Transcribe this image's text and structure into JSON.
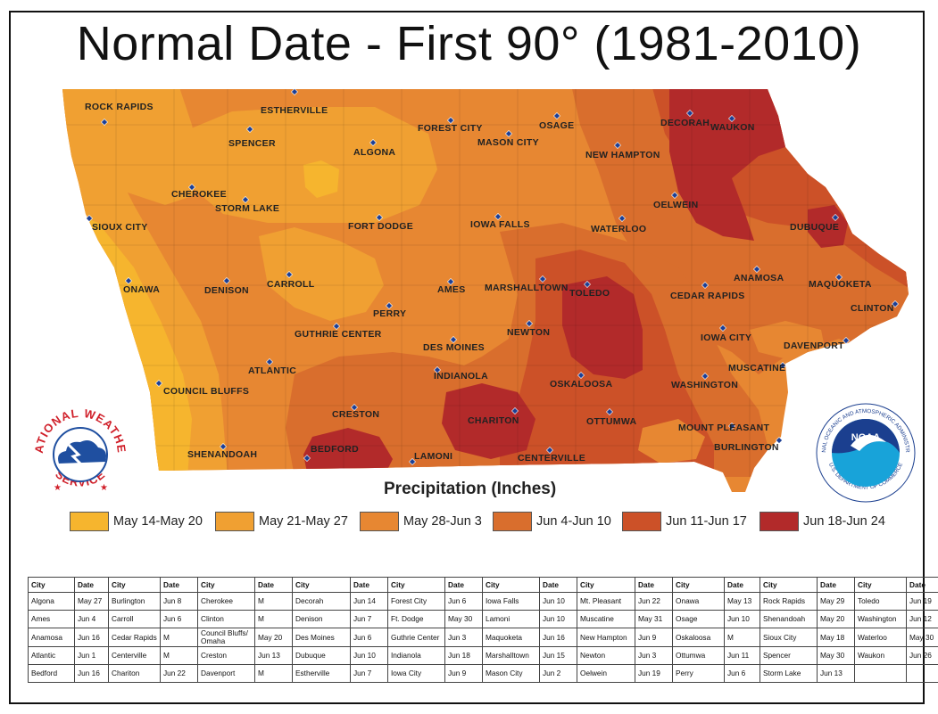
{
  "title": "Normal Date - First 90° (1981-2010)",
  "legend": {
    "title": "Precipitation (Inches)",
    "items": [
      {
        "label": "May 14-May 20",
        "color": "#f6b52e"
      },
      {
        "label": "May 21-May 27",
        "color": "#f0a032"
      },
      {
        "label": "May 28-Jun 3",
        "color": "#e78732"
      },
      {
        "label": "Jun 4-Jun 10",
        "color": "#d96e2d"
      },
      {
        "label": "Jun 11-Jun 17",
        "color": "#cc5128"
      },
      {
        "label": "Jun 18-Jun 24",
        "color": "#b22a2a"
      }
    ]
  },
  "cities": [
    "ROCK RAPIDS",
    "ESTHERVILLE",
    "FOREST CITY",
    "OSAGE",
    "DECORAH",
    "WAUKON",
    "SPENCER",
    "ALGONA",
    "MASON CITY",
    "NEW HAMPTON",
    "CHEROKEE",
    "STORM LAKE",
    "OELWEIN",
    "SIOUX CITY",
    "FORT DODGE",
    "IOWA FALLS",
    "WATERLOO",
    "DUBUQUE",
    "ANAMOSA",
    "ONAWA",
    "DENISON",
    "CARROLL",
    "AMES",
    "MARSHALLTOWN",
    "TOLEDO",
    "MAQUOKETA",
    "CEDAR RAPIDS",
    "PERRY",
    "CLINTON",
    "GUTHRIE CENTER",
    "NEWTON",
    "IOWA CITY",
    "DES MOINES",
    "DAVENPORT",
    "ATLANTIC",
    "INDIANOLA",
    "MUSCATINE",
    "COUNCIL BLUFFS",
    "OSKALOOSA",
    "WASHINGTON",
    "CRESTON",
    "CHARITON",
    "OTTUMWA",
    "MOUNT PLEASANT",
    "BEDFORD",
    "LAMONI",
    "CENTERVILLE",
    "BURLINGTON",
    "SHENANDOAH"
  ],
  "logos": {
    "nws": {
      "top": "NATIONAL WEATHER",
      "bottom": "SERVICE"
    },
    "noaa": {
      "center": "NOAA",
      "ring": "NATIONAL OCEANIC AND ATMOSPHERIC ADMINISTRATION",
      "ring_bottom": "U.S. DEPARTMENT OF COMMERCE"
    }
  },
  "table": {
    "headers": [
      "City",
      "Date",
      "City",
      "Date",
      "City",
      "Date",
      "City",
      "Date",
      "City",
      "Date",
      "City",
      "Date",
      "City",
      "Date",
      "City",
      "Date",
      "City",
      "Date",
      "City",
      "Date"
    ],
    "rows": [
      [
        "Algona",
        "May 27",
        "Burlington",
        "Jun 8",
        "Cherokee",
        "M",
        "Decorah",
        "Jun 14",
        "Forest City",
        "Jun 6",
        "Iowa Falls",
        "Jun 10",
        "Mt. Pleasant",
        "Jun 22",
        "Onawa",
        "May 13",
        "Rock Rapids",
        "May 29",
        "Toledo",
        "Jun 19"
      ],
      [
        "Ames",
        "Jun 4",
        "Carroll",
        "Jun 6",
        "Clinton",
        "M",
        "Denison",
        "Jun 7",
        "Ft. Dodge",
        "May 30",
        "Lamoni",
        "Jun 10",
        "Muscatine",
        "May 31",
        "Osage",
        "Jun 10",
        "Shenandoah",
        "May 20",
        "Washington",
        "Jun 12"
      ],
      [
        "Anamosa",
        "Jun 16",
        "Cedar Rapids",
        "M",
        "Council Bluffs/ Omaha",
        "May 20",
        "Des Moines",
        "Jun 6",
        "Guthrie Center",
        "Jun 3",
        "Maquoketa",
        "Jun 16",
        "New Hampton",
        "Jun 9",
        "Oskaloosa",
        "M",
        "Sioux City",
        "May 18",
        "Waterloo",
        "May 30"
      ],
      [
        "Atlantic",
        "Jun 1",
        "Centerville",
        "M",
        "Creston",
        "Jun 13",
        "Dubuque",
        "Jun 10",
        "Indianola",
        "Jun 18",
        "Marshalltown",
        "Jun 15",
        "Newton",
        "Jun 3",
        "Ottumwa",
        "Jun 11",
        "Spencer",
        "May 30",
        "Waukon",
        "Jun 26"
      ],
      [
        "Bedford",
        "Jun 16",
        "Chariton",
        "Jun 22",
        "Davenport",
        "M",
        "Estherville",
        "Jun 7",
        "Iowa City",
        "Jun 9",
        "Mason City",
        "Jun 2",
        "Oelwein",
        "Jun 19",
        "Perry",
        "Jun 6",
        "Storm Lake",
        "Jun 13",
        "",
        ""
      ]
    ]
  }
}
